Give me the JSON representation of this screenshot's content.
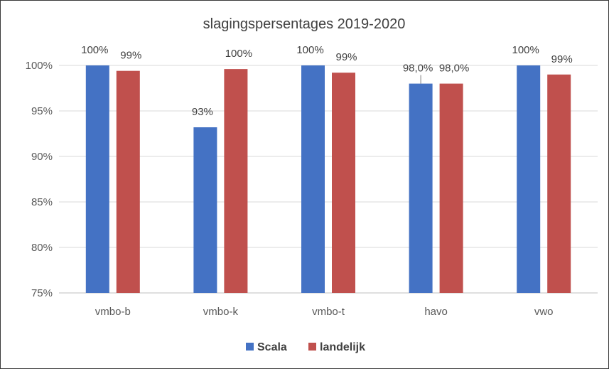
{
  "chart_data": {
    "type": "bar",
    "title": "slagingspersentages 2019-2020",
    "categories": [
      "vmbo-b",
      "vmbo-k",
      "vmbo-t",
      "havo",
      "vwo"
    ],
    "series": [
      {
        "name": "Scala",
        "color": "#4472C4",
        "values": [
          100,
          93.2,
          100,
          98.0,
          100
        ],
        "labels": [
          "100%",
          "93%",
          "100%",
          "98,0%",
          "100%"
        ]
      },
      {
        "name": "landelijk",
        "color": "#C0504D",
        "values": [
          99.4,
          99.6,
          99.2,
          98.0,
          99.0
        ],
        "labels": [
          "99%",
          "100%",
          "99%",
          "98,0%",
          "99%"
        ]
      }
    ],
    "ylim": [
      75,
      100
    ],
    "yticks": [
      75,
      80,
      85,
      90,
      95,
      100
    ],
    "ytick_labels": [
      "75%",
      "80%",
      "85%",
      "90%",
      "95%",
      "100%"
    ],
    "grid": true,
    "legend_position": "bottom"
  }
}
